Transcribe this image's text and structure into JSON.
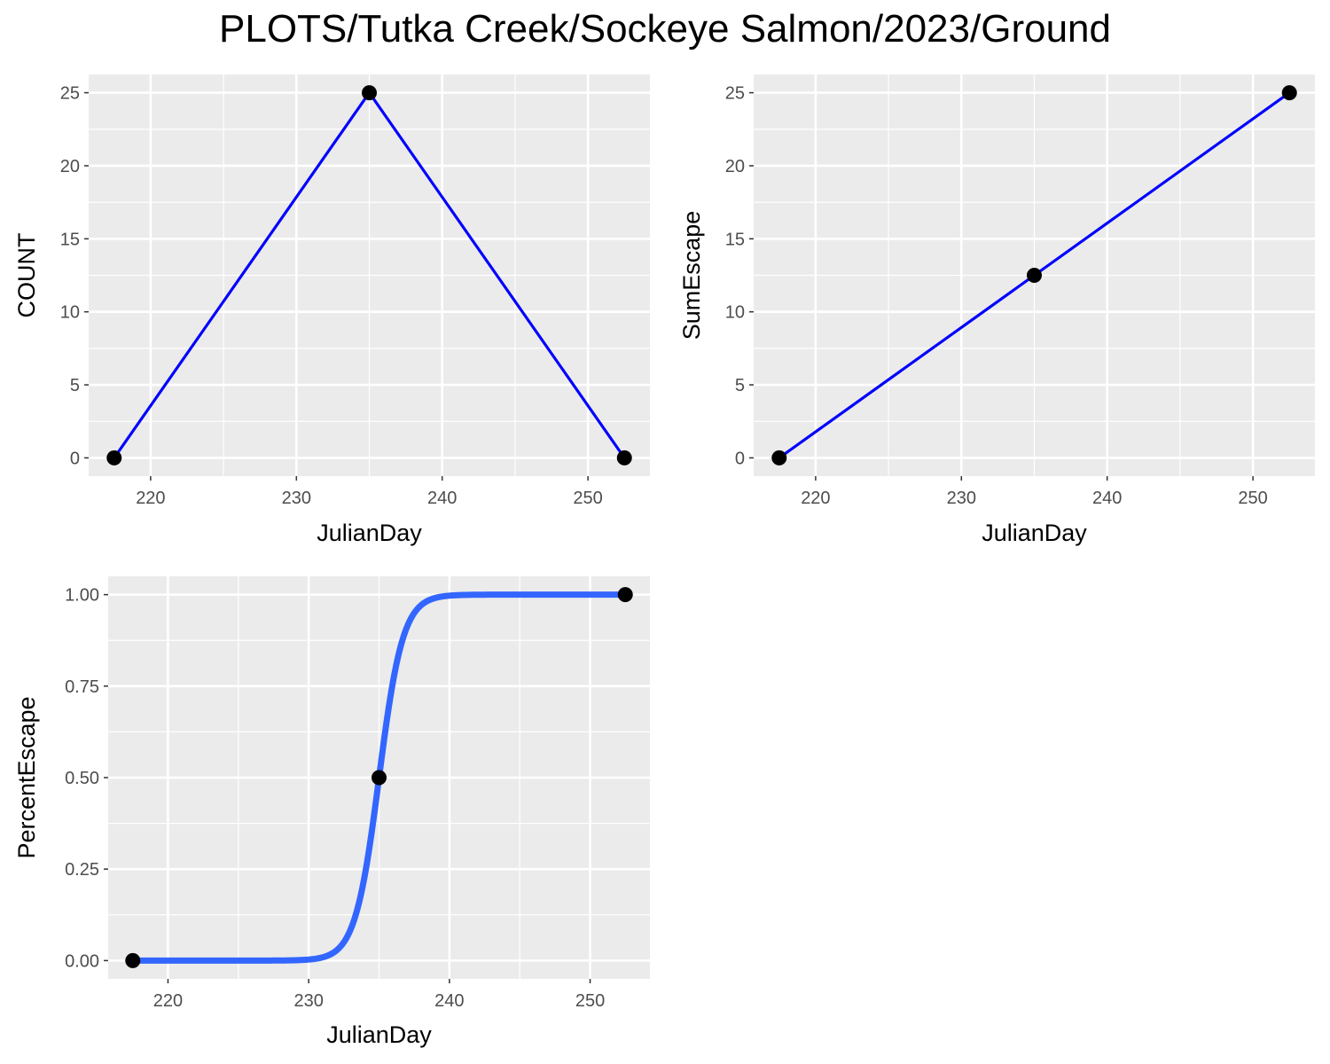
{
  "figure_title": "PLOTS/Tutka Creek/Sockeye Salmon/2023/Ground",
  "colors": {
    "panel_bg": "#ebebeb",
    "grid": "#ffffff",
    "line_blue": "#0000ff",
    "smooth_blue": "#3366ff",
    "point": "#000000",
    "tick_text": "#4d4d4d"
  },
  "chart_data": [
    {
      "type": "line",
      "xlabel": "JulianDay",
      "ylabel": "COUNT",
      "x": [
        217.5,
        235,
        252.5
      ],
      "y": [
        0,
        25,
        0
      ],
      "xlim": [
        215.75,
        254.25
      ],
      "ylim": [
        -1.25,
        26.25
      ],
      "xticks": [
        220,
        230,
        240,
        250
      ],
      "xtick_labels": [
        "220",
        "230",
        "240",
        "250"
      ],
      "yticks": [
        0,
        5,
        10,
        15,
        20,
        25
      ],
      "ytick_labels": [
        "0",
        "5",
        "10",
        "15",
        "20",
        "25"
      ],
      "grid": true,
      "series_style": "blue line with black points"
    },
    {
      "type": "line",
      "xlabel": "JulianDay",
      "ylabel": "SumEscape",
      "x": [
        217.5,
        235,
        252.5
      ],
      "y": [
        0,
        12.5,
        25
      ],
      "xlim": [
        215.75,
        254.25
      ],
      "ylim": [
        -1.25,
        26.25
      ],
      "xticks": [
        220,
        230,
        240,
        250
      ],
      "xtick_labels": [
        "220",
        "230",
        "240",
        "250"
      ],
      "yticks": [
        0,
        5,
        10,
        15,
        20,
        25
      ],
      "ytick_labels": [
        "0",
        "5",
        "10",
        "15",
        "20",
        "25"
      ],
      "grid": true,
      "series_style": "blue line with black points"
    },
    {
      "type": "line",
      "xlabel": "JulianDay",
      "ylabel": "PercentEscape",
      "x": [
        217.5,
        235,
        252.5
      ],
      "y": [
        0,
        0.5,
        1
      ],
      "fit_curve": {
        "kind": "logistic",
        "midpoint": 235,
        "scale": 0.85,
        "x_range": [
          217.5,
          252.5
        ]
      },
      "xlim": [
        215.75,
        254.25
      ],
      "ylim": [
        -0.05,
        1.05
      ],
      "xticks": [
        220,
        230,
        240,
        250
      ],
      "xtick_labels": [
        "220",
        "230",
        "240",
        "250"
      ],
      "yticks": [
        0,
        0.25,
        0.5,
        0.75,
        1
      ],
      "ytick_labels": [
        "0.00",
        "0.25",
        "0.50",
        "0.75",
        "1.00"
      ],
      "grid": true,
      "series_style": "thick smooth blue curve with black points"
    }
  ]
}
